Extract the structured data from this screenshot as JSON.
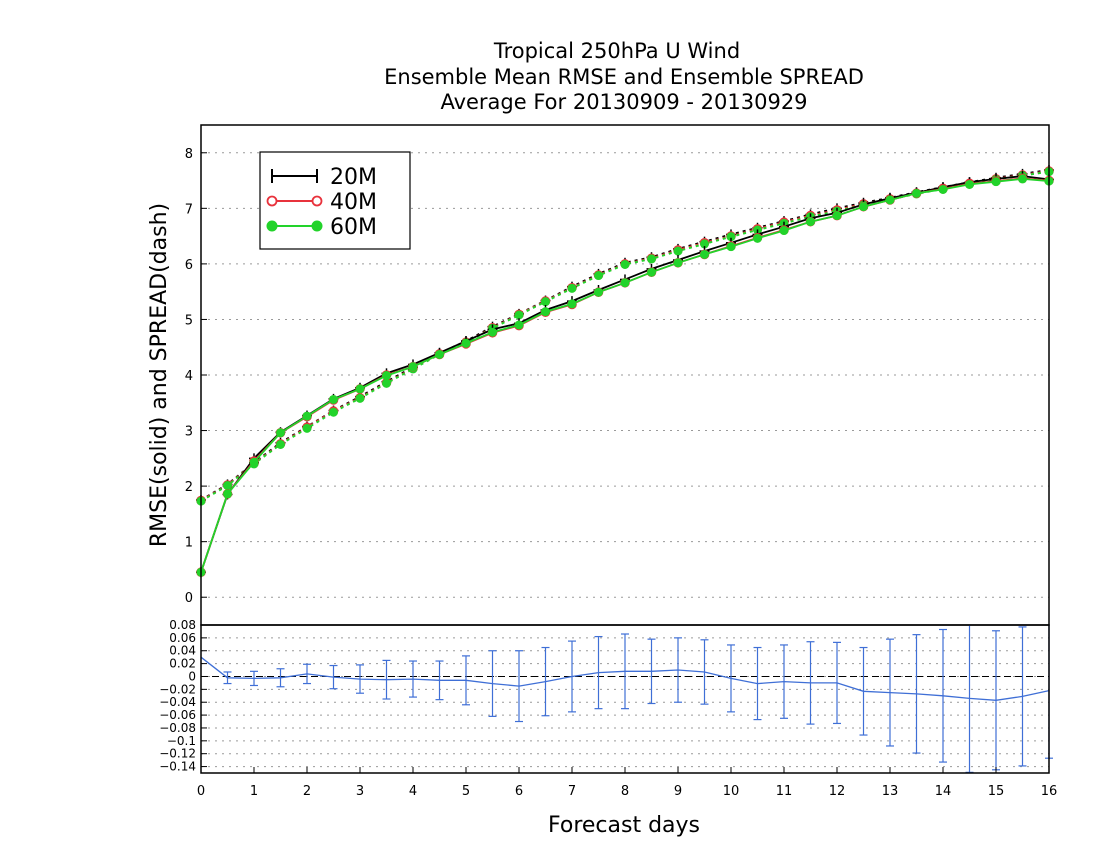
{
  "title_lines": [
    "Tropical 250hPa U Wind",
    "Ensemble Mean RMSE and Ensemble SPREAD",
    "Average For 20130909 - 20130929"
  ],
  "colors": {
    "20M": "#000000",
    "40M": "#e8323c",
    "60M": "#22d32a",
    "diff": "#3f6fd6",
    "grid": "#9a9a9a"
  },
  "chart_data": [
    {
      "type": "line",
      "ylabel": "RMSE(solid) and SPREAD(dash)",
      "xlabel": "",
      "xlim": [
        0,
        16
      ],
      "ylim": [
        -0.5,
        8.5
      ],
      "y_ticks": [
        0,
        1,
        2,
        3,
        4,
        5,
        6,
        7,
        8
      ],
      "legend": {
        "placement": "top-left",
        "entries": [
          "20M",
          "40M",
          "60M"
        ]
      },
      "x": [
        0,
        0.5,
        1,
        1.5,
        2,
        2.5,
        3,
        3.5,
        4,
        4.5,
        5,
        5.5,
        6,
        6.5,
        7,
        7.5,
        8,
        8.5,
        9,
        9.5,
        10,
        10.5,
        11,
        11.5,
        12,
        12.5,
        13,
        13.5,
        14,
        14.5,
        15,
        15.5,
        16
      ],
      "series": [
        {
          "name": "20M",
          "style": "solid",
          "values": [
            0.45,
            1.85,
            2.5,
            2.97,
            3.27,
            3.57,
            3.77,
            4.03,
            4.19,
            4.4,
            4.61,
            4.82,
            4.93,
            5.17,
            5.33,
            5.53,
            5.72,
            5.91,
            6.07,
            6.23,
            6.38,
            6.53,
            6.67,
            6.82,
            6.92,
            7.07,
            7.18,
            7.28,
            7.38,
            7.47,
            7.53,
            7.58,
            7.52
          ]
        },
        {
          "name": "40M",
          "style": "solid",
          "values": [
            0.45,
            1.86,
            2.45,
            2.96,
            3.25,
            3.55,
            3.75,
            4.0,
            4.15,
            4.37,
            4.56,
            4.76,
            4.89,
            5.13,
            5.27,
            5.49,
            5.66,
            5.85,
            6.02,
            6.17,
            6.32,
            6.47,
            6.61,
            6.76,
            6.87,
            7.03,
            7.15,
            7.27,
            7.35,
            7.44,
            7.49,
            7.54,
            7.5
          ]
        },
        {
          "name": "60M",
          "style": "solid",
          "values": [
            0.45,
            1.86,
            2.43,
            2.96,
            3.26,
            3.56,
            3.75,
            3.99,
            4.15,
            4.37,
            4.57,
            4.77,
            4.9,
            5.14,
            5.28,
            5.49,
            5.66,
            5.85,
            6.02,
            6.17,
            6.31,
            6.46,
            6.6,
            6.76,
            6.87,
            7.03,
            7.15,
            7.27,
            7.34,
            7.43,
            7.48,
            7.53,
            7.49
          ]
        },
        {
          "name": "20M",
          "style": "dash",
          "values": [
            1.75,
            2.03,
            2.42,
            2.78,
            3.07,
            3.36,
            3.61,
            3.88,
            4.14,
            4.39,
            4.61,
            4.87,
            5.1,
            5.34,
            5.59,
            5.82,
            6.02,
            6.12,
            6.27,
            6.4,
            6.53,
            6.65,
            6.77,
            6.89,
            7.0,
            7.1,
            7.19,
            7.29,
            7.38,
            7.47,
            7.55,
            7.62,
            7.69
          ]
        },
        {
          "name": "40M",
          "style": "dash",
          "values": [
            1.74,
            2.02,
            2.41,
            2.76,
            3.06,
            3.35,
            3.59,
            3.86,
            4.12,
            4.38,
            4.59,
            4.85,
            5.09,
            5.33,
            5.57,
            5.8,
            6.0,
            6.1,
            6.25,
            6.38,
            6.5,
            6.63,
            6.75,
            6.87,
            6.97,
            7.08,
            7.17,
            7.27,
            7.36,
            7.45,
            7.53,
            7.6,
            7.67
          ]
        },
        {
          "name": "60M",
          "style": "dash",
          "values": [
            1.73,
            2.01,
            2.4,
            2.75,
            3.04,
            3.33,
            3.58,
            3.85,
            4.11,
            4.37,
            4.58,
            4.84,
            5.08,
            5.32,
            5.56,
            5.79,
            5.99,
            6.09,
            6.23,
            6.36,
            6.49,
            6.61,
            6.73,
            6.85,
            6.95,
            7.06,
            7.16,
            7.26,
            7.35,
            7.44,
            7.52,
            7.59,
            7.66
          ]
        }
      ]
    },
    {
      "type": "line",
      "xlabel": "Forecast days",
      "ylabel": "",
      "xlim": [
        0,
        16
      ],
      "ylim": [
        -0.15,
        0.08
      ],
      "x_ticks": [
        0,
        1,
        2,
        3,
        4,
        5,
        6,
        7,
        8,
        9,
        10,
        11,
        12,
        13,
        14,
        15,
        16
      ],
      "y_ticks": [
        0.08,
        0.06,
        0.04,
        0.02,
        0,
        -0.02,
        -0.04,
        -0.06,
        -0.08,
        -0.1,
        -0.12,
        -0.14
      ],
      "y_tick_labels": [
        "0.08",
        "0.06",
        "0.04",
        "0.02",
        "0",
        "−0.02",
        "−0.04",
        "−0.06",
        "−0.08",
        "−0.1",
        "−0.12",
        "−0.14"
      ],
      "zero_line": 0,
      "x": [
        0,
        0.5,
        1,
        1.5,
        2,
        2.5,
        3,
        3.5,
        4,
        4.5,
        5,
        5.5,
        6,
        6.5,
        7,
        7.5,
        8,
        8.5,
        9,
        9.5,
        10,
        10.5,
        11,
        11.5,
        12,
        12.5,
        13,
        13.5,
        14,
        14.5,
        15,
        15.5,
        16
      ],
      "values": [
        0.03,
        -0.002,
        -0.003,
        -0.002,
        0.004,
        -0.001,
        -0.004,
        -0.005,
        -0.004,
        -0.006,
        -0.006,
        -0.011,
        -0.015,
        -0.008,
        0.0,
        0.006,
        0.008,
        0.008,
        0.01,
        0.007,
        -0.003,
        -0.011,
        -0.008,
        -0.01,
        -0.01,
        -0.023,
        -0.025,
        -0.027,
        -0.03,
        -0.034,
        -0.037,
        -0.031,
        -0.022
      ],
      "error_half_widths": [
        0,
        0.009,
        0.011,
        0.014,
        0.015,
        0.018,
        0.022,
        0.03,
        0.028,
        0.03,
        0.038,
        0.051,
        0.055,
        0.053,
        0.055,
        0.056,
        0.058,
        0.05,
        0.05,
        0.05,
        0.052,
        0.056,
        0.057,
        0.064,
        0.063,
        0.068,
        0.083,
        0.092,
        0.103,
        0.115,
        0.108,
        0.108,
        0.105
      ]
    }
  ]
}
